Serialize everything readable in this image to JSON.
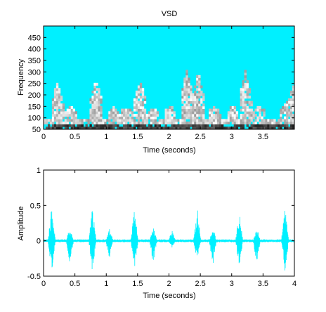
{
  "colors": {
    "accent": "#00f0ff",
    "spectrogram_background": "#00f0ff",
    "energy_dark": "#111111",
    "energy_light": "#f4f4f4"
  },
  "chart_data": [
    {
      "type": "heatmap",
      "title": "VSD",
      "xlabel": "Time (seconds)",
      "ylabel": "Frequency",
      "xlim": [
        0,
        4.0
      ],
      "ylim": [
        50,
        500
      ],
      "x_ticks": [
        0,
        0.5,
        1,
        1.5,
        2,
        2.5,
        3,
        3.5
      ],
      "x_tick_labels": [
        "0",
        "0.5",
        "1",
        "1.5",
        "2",
        "2.5",
        "3",
        "3.5"
      ],
      "y_ticks": [
        50,
        100,
        150,
        200,
        250,
        300,
        350,
        400,
        450
      ],
      "y_tick_labels": [
        "50",
        "100",
        "150",
        "200",
        "250",
        "300",
        "350",
        "400",
        "450"
      ],
      "grid": false,
      "bursts": [
        {
          "time": 0.2,
          "max_frequency": 250
        },
        {
          "time": 0.42,
          "max_frequency": 150
        },
        {
          "time": 0.82,
          "max_frequency": 270
        },
        {
          "time": 1.1,
          "max_frequency": 140
        },
        {
          "time": 1.3,
          "max_frequency": 150
        },
        {
          "time": 1.52,
          "max_frequency": 265
        },
        {
          "time": 1.73,
          "max_frequency": 140
        },
        {
          "time": 2.0,
          "max_frequency": 150
        },
        {
          "time": 2.27,
          "max_frequency": 310
        },
        {
          "time": 2.45,
          "max_frequency": 300
        },
        {
          "time": 2.7,
          "max_frequency": 150
        },
        {
          "time": 3.0,
          "max_frequency": 150
        },
        {
          "time": 3.2,
          "max_frequency": 300
        },
        {
          "time": 3.43,
          "max_frequency": 150
        },
        {
          "time": 3.85,
          "max_frequency": 170
        },
        {
          "time": 3.97,
          "max_frequency": 240
        }
      ]
    },
    {
      "type": "line",
      "title": "",
      "xlabel": "Time (seconds)",
      "ylabel": "Amplitude",
      "xlim": [
        0,
        4
      ],
      "ylim": [
        -0.5,
        1
      ],
      "x_ticks": [
        0,
        0.5,
        1,
        1.5,
        2,
        2.5,
        3,
        3.5,
        4
      ],
      "x_tick_labels": [
        "0",
        "0.5",
        "1",
        "1.5",
        "2",
        "2.5",
        "3",
        "3.5",
        "4"
      ],
      "y_ticks": [
        -0.5,
        0,
        0.5,
        1
      ],
      "y_tick_labels": [
        "-0.5",
        "0",
        "0.5",
        "1"
      ],
      "grid": false,
      "bursts": [
        {
          "time": 0.13,
          "max": 0.5,
          "min": -0.45
        },
        {
          "time": 0.42,
          "max": 0.2,
          "min": -0.35
        },
        {
          "time": 0.78,
          "max": 0.5,
          "min": -0.45
        },
        {
          "time": 1.05,
          "max": 0.2,
          "min": -0.25
        },
        {
          "time": 1.45,
          "max": 0.5,
          "min": -0.4
        },
        {
          "time": 1.75,
          "max": 0.2,
          "min": -0.35
        },
        {
          "time": 2.05,
          "max": 0.15,
          "min": -0.1
        },
        {
          "time": 2.45,
          "max": 0.5,
          "min": -0.3
        },
        {
          "time": 2.7,
          "max": 0.2,
          "min": -0.35
        },
        {
          "time": 3.12,
          "max": 0.45,
          "min": -0.4
        },
        {
          "time": 3.4,
          "max": 0.2,
          "min": -0.35
        },
        {
          "time": 3.85,
          "max": 0.5,
          "min": -0.45
        }
      ]
    }
  ]
}
